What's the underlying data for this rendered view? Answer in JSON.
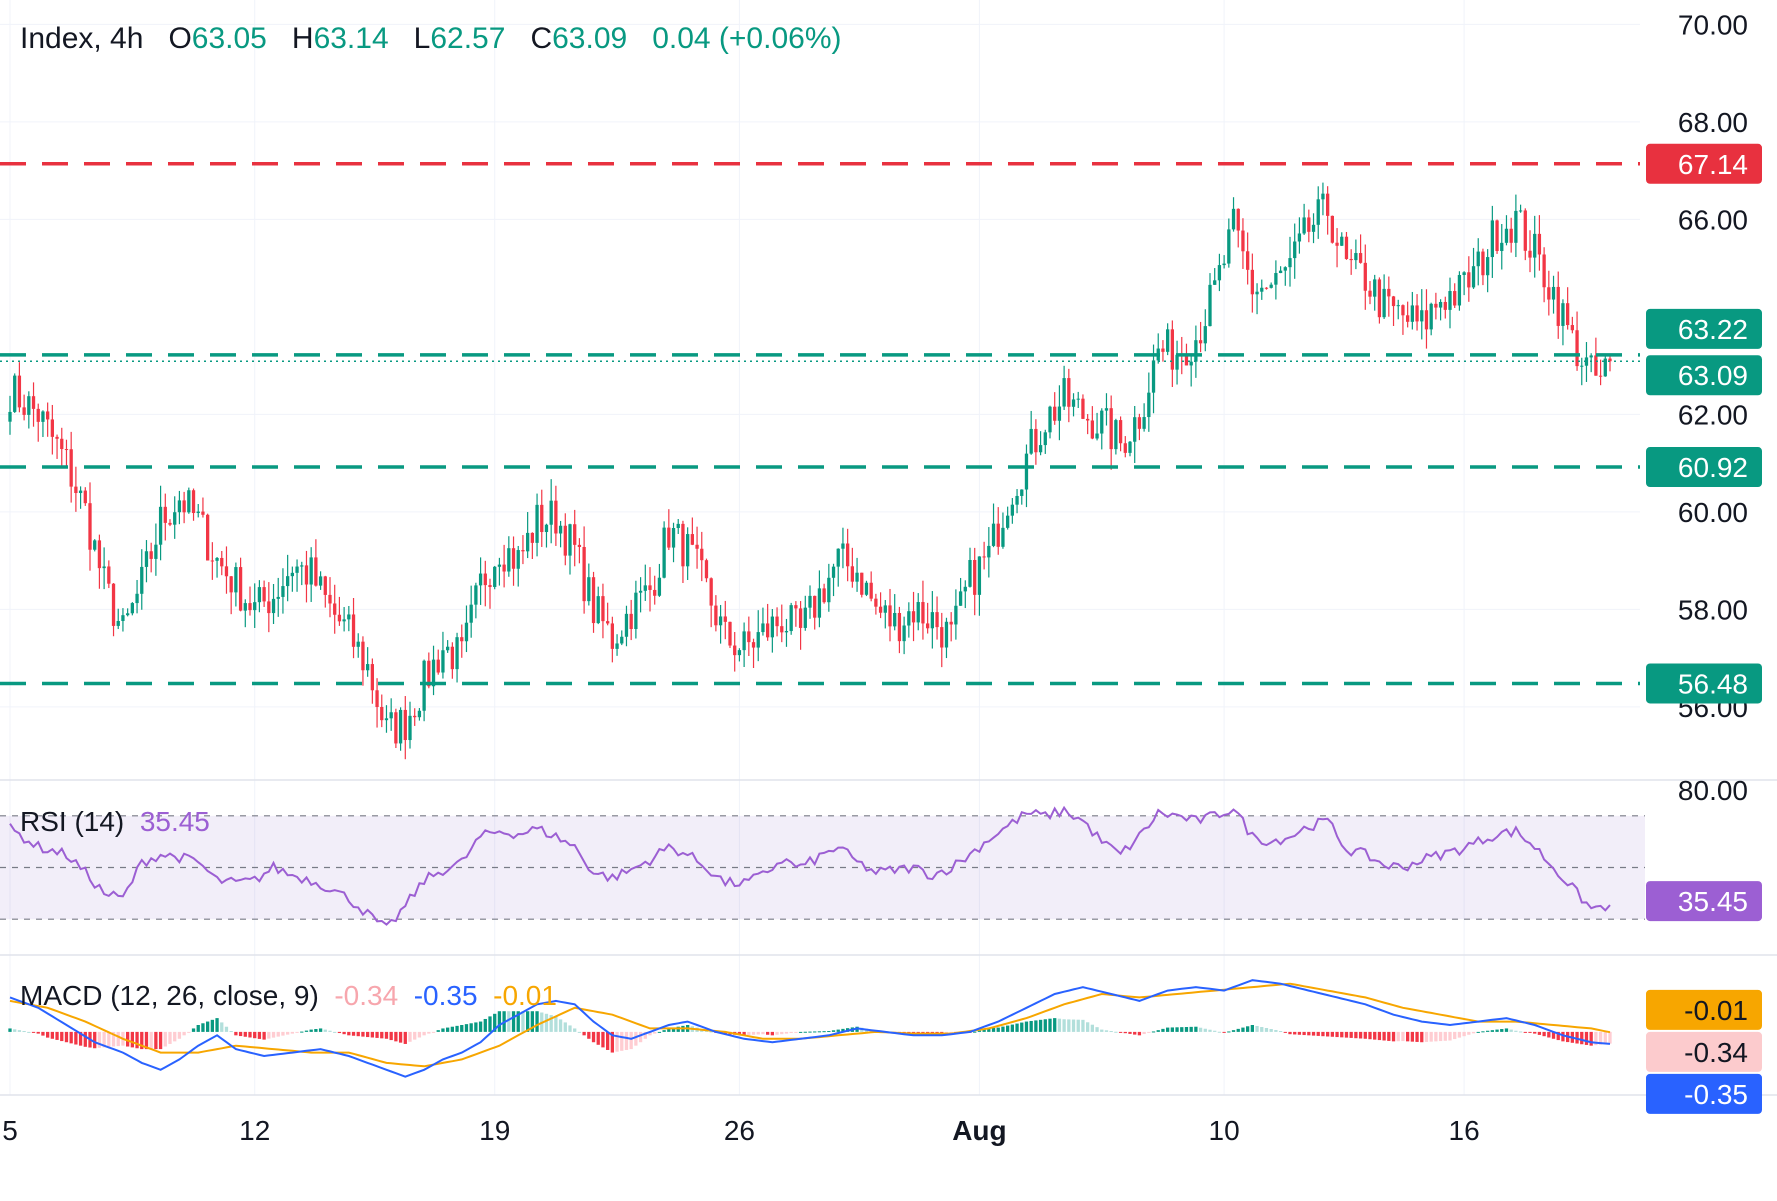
{
  "header": {
    "symbol": "Index, 4h",
    "o_label": "O",
    "o_value": "63.05",
    "h_label": "H",
    "h_value": "63.14",
    "l_label": "L",
    "l_value": "62.57",
    "c_label": "C",
    "c_value": "63.09",
    "change": "0.04 (+0.06%)"
  },
  "rsi_header": {
    "label": "RSI (14)",
    "value": "35.45"
  },
  "macd_header": {
    "label": "MACD (12, 26, close, 9)",
    "hist": "-0.34",
    "macd": "-0.35",
    "signal": "-0.01"
  },
  "colors": {
    "up": "#089981",
    "down": "#f23645",
    "resistance": "#e8313f",
    "rsi": "#9c5fd3",
    "macd": "#2962ff",
    "signal": "#f7a600",
    "grid": "#f0f3fa"
  },
  "chart_data": [
    {
      "type": "candlestick",
      "timeframe": "4h",
      "ylim": [
        54.5,
        70.5
      ],
      "y_ticks": [
        "70.00",
        "68.00",
        "66.00",
        "62.00",
        "60.00",
        "58.00",
        "56.00"
      ],
      "x_ticks": [
        "5",
        "12",
        "19",
        "26",
        "Aug",
        "10",
        "16"
      ],
      "levels": [
        {
          "value": 67.14,
          "label": "67.14",
          "style": "resistance"
        },
        {
          "value": 63.22,
          "label": "63.22",
          "style": "support"
        },
        {
          "value": 60.92,
          "label": "60.92",
          "style": "support"
        },
        {
          "value": 56.48,
          "label": "56.48",
          "style": "support"
        }
      ],
      "last_price": {
        "value": 63.09,
        "label": "63.09"
      },
      "waypoints": [
        [
          0,
          62.5
        ],
        [
          6,
          62.0
        ],
        [
          12,
          61.0
        ],
        [
          16,
          60.0
        ],
        [
          20,
          58.5
        ],
        [
          24,
          57.5
        ],
        [
          28,
          58.5
        ],
        [
          32,
          59.8
        ],
        [
          36,
          60.3
        ],
        [
          40,
          59.8
        ],
        [
          44,
          59.0
        ],
        [
          48,
          58.5
        ],
        [
          52,
          58.0
        ],
        [
          56,
          58.3
        ],
        [
          60,
          58.9
        ],
        [
          64,
          58.7
        ],
        [
          68,
          58.0
        ],
        [
          72,
          57.5
        ],
        [
          76,
          56.8
        ],
        [
          80,
          55.5
        ],
        [
          84,
          55.7
        ],
        [
          88,
          56.5
        ],
        [
          92,
          57.2
        ],
        [
          96,
          57.0
        ],
        [
          100,
          58.5
        ],
        [
          104,
          59.3
        ],
        [
          108,
          59.0
        ],
        [
          112,
          59.8
        ],
        [
          116,
          59.9
        ],
        [
          120,
          59.2
        ],
        [
          124,
          58.0
        ],
        [
          128,
          57.4
        ],
        [
          132,
          58.0
        ],
        [
          136,
          58.4
        ],
        [
          140,
          59.6
        ],
        [
          144,
          59.2
        ],
        [
          148,
          58.4
        ],
        [
          152,
          57.4
        ],
        [
          156,
          57.2
        ],
        [
          160,
          57.5
        ],
        [
          164,
          57.8
        ],
        [
          168,
          57.5
        ],
        [
          172,
          58.3
        ],
        [
          176,
          59.0
        ],
        [
          180,
          58.8
        ],
        [
          184,
          58.0
        ],
        [
          188,
          57.7
        ],
        [
          192,
          58.0
        ],
        [
          196,
          57.8
        ],
        [
          200,
          57.4
        ],
        [
          204,
          58.6
        ],
        [
          208,
          59.1
        ],
        [
          212,
          60.3
        ],
        [
          216,
          61.1
        ],
        [
          220,
          61.9
        ],
        [
          224,
          62.3
        ],
        [
          228,
          62.0
        ],
        [
          232,
          61.8
        ],
        [
          236,
          61.4
        ],
        [
          240,
          62.0
        ],
        [
          244,
          63.3
        ],
        [
          248,
          63.3
        ],
        [
          252,
          63.6
        ],
        [
          256,
          64.5
        ],
        [
          260,
          65.8
        ],
        [
          264,
          64.6
        ],
        [
          268,
          64.6
        ],
        [
          272,
          65.0
        ],
        [
          276,
          65.8
        ],
        [
          280,
          66.2
        ],
        [
          284,
          65.0
        ],
        [
          288,
          64.8
        ],
        [
          292,
          64.2
        ],
        [
          296,
          64.0
        ],
        [
          300,
          63.8
        ],
        [
          304,
          64.4
        ],
        [
          308,
          64.5
        ],
        [
          312,
          65.0
        ],
        [
          316,
          65.8
        ],
        [
          320,
          66.0
        ],
        [
          324,
          65.3
        ],
        [
          328,
          64.5
        ],
        [
          332,
          63.5
        ],
        [
          336,
          62.8
        ],
        [
          338,
          62.7
        ],
        [
          340,
          63.09
        ]
      ]
    },
    {
      "type": "line",
      "name": "RSI (14)",
      "ylim": [
        20,
        80
      ],
      "y_ticks": [
        "80.00"
      ],
      "bands": [
        70,
        50,
        30
      ],
      "last": {
        "value": 35.45,
        "label": "35.45"
      },
      "waypoints": [
        [
          0,
          65
        ],
        [
          6,
          58
        ],
        [
          12,
          55
        ],
        [
          16,
          48
        ],
        [
          20,
          40
        ],
        [
          24,
          38
        ],
        [
          28,
          52
        ],
        [
          32,
          55
        ],
        [
          36,
          54
        ],
        [
          40,
          52
        ],
        [
          44,
          45
        ],
        [
          48,
          44
        ],
        [
          52,
          45
        ],
        [
          56,
          50
        ],
        [
          60,
          47
        ],
        [
          64,
          45
        ],
        [
          68,
          42
        ],
        [
          72,
          38
        ],
        [
          76,
          32
        ],
        [
          80,
          26
        ],
        [
          84,
          35
        ],
        [
          88,
          45
        ],
        [
          92,
          49
        ],
        [
          96,
          52
        ],
        [
          100,
          62
        ],
        [
          104,
          64
        ],
        [
          108,
          63
        ],
        [
          112,
          65
        ],
        [
          116,
          62
        ],
        [
          120,
          58
        ],
        [
          124,
          48
        ],
        [
          128,
          46
        ],
        [
          132,
          49
        ],
        [
          136,
          53
        ],
        [
          140,
          58
        ],
        [
          144,
          55
        ],
        [
          148,
          50
        ],
        [
          152,
          44
        ],
        [
          156,
          44
        ],
        [
          160,
          47
        ],
        [
          164,
          53
        ],
        [
          168,
          50
        ],
        [
          172,
          54
        ],
        [
          176,
          58
        ],
        [
          180,
          52
        ],
        [
          184,
          48
        ],
        [
          188,
          49
        ],
        [
          192,
          50
        ],
        [
          196,
          47
        ],
        [
          200,
          50
        ],
        [
          204,
          55
        ],
        [
          208,
          61
        ],
        [
          212,
          66
        ],
        [
          216,
          71
        ],
        [
          220,
          70
        ],
        [
          224,
          72
        ],
        [
          228,
          68
        ],
        [
          232,
          60
        ],
        [
          236,
          55
        ],
        [
          240,
          62
        ],
        [
          244,
          71
        ],
        [
          248,
          70
        ],
        [
          252,
          68
        ],
        [
          256,
          70
        ],
        [
          260,
          73
        ],
        [
          264,
          62
        ],
        [
          268,
          60
        ],
        [
          272,
          62
        ],
        [
          276,
          66
        ],
        [
          280,
          68
        ],
        [
          284,
          57
        ],
        [
          288,
          55
        ],
        [
          292,
          51
        ],
        [
          296,
          50
        ],
        [
          300,
          53
        ],
        [
          304,
          55
        ],
        [
          308,
          57
        ],
        [
          312,
          60
        ],
        [
          316,
          63
        ],
        [
          320,
          64
        ],
        [
          324,
          58
        ],
        [
          328,
          50
        ],
        [
          332,
          42
        ],
        [
          336,
          34
        ],
        [
          340,
          35.45
        ]
      ]
    },
    {
      "type": "macd",
      "name": "MACD (12, 26, close, 9)",
      "ylim": [
        -1.6,
        2.0
      ],
      "series": [
        {
          "name": "MACD",
          "last": -0.35
        },
        {
          "name": "Signal",
          "last": -0.01
        },
        {
          "name": "Histogram",
          "last": -0.34
        }
      ],
      "right_labels": [
        "-0.01",
        "-0.34",
        "-0.35"
      ],
      "macd_waypoints": [
        [
          0,
          1.0
        ],
        [
          6,
          0.7
        ],
        [
          12,
          0.2
        ],
        [
          18,
          -0.3
        ],
        [
          24,
          -0.6
        ],
        [
          28,
          -0.9
        ],
        [
          32,
          -1.1
        ],
        [
          36,
          -0.8
        ],
        [
          40,
          -0.4
        ],
        [
          44,
          -0.1
        ],
        [
          48,
          -0.5
        ],
        [
          54,
          -0.7
        ],
        [
          60,
          -0.6
        ],
        [
          66,
          -0.5
        ],
        [
          72,
          -0.7
        ],
        [
          78,
          -1.0
        ],
        [
          84,
          -1.3
        ],
        [
          88,
          -1.1
        ],
        [
          92,
          -0.8
        ],
        [
          96,
          -0.6
        ],
        [
          100,
          -0.3
        ],
        [
          104,
          0.2
        ],
        [
          108,
          0.5
        ],
        [
          112,
          0.8
        ],
        [
          116,
          0.9
        ],
        [
          120,
          0.8
        ],
        [
          124,
          0.3
        ],
        [
          128,
          -0.1
        ],
        [
          132,
          -0.2
        ],
        [
          136,
          0.0
        ],
        [
          140,
          0.2
        ],
        [
          144,
          0.3
        ],
        [
          150,
          0.0
        ],
        [
          156,
          -0.2
        ],
        [
          162,
          -0.3
        ],
        [
          168,
          -0.2
        ],
        [
          174,
          -0.1
        ],
        [
          180,
          0.1
        ],
        [
          186,
          0.0
        ],
        [
          192,
          -0.1
        ],
        [
          198,
          -0.1
        ],
        [
          204,
          0.0
        ],
        [
          210,
          0.3
        ],
        [
          216,
          0.7
        ],
        [
          222,
          1.1
        ],
        [
          228,
          1.3
        ],
        [
          234,
          1.1
        ],
        [
          240,
          0.9
        ],
        [
          246,
          1.2
        ],
        [
          252,
          1.3
        ],
        [
          258,
          1.2
        ],
        [
          264,
          1.5
        ],
        [
          270,
          1.4
        ],
        [
          276,
          1.2
        ],
        [
          282,
          1.0
        ],
        [
          288,
          0.8
        ],
        [
          294,
          0.5
        ],
        [
          300,
          0.3
        ],
        [
          306,
          0.2
        ],
        [
          312,
          0.3
        ],
        [
          318,
          0.4
        ],
        [
          324,
          0.2
        ],
        [
          330,
          -0.1
        ],
        [
          336,
          -0.3
        ],
        [
          340,
          -0.35
        ]
      ],
      "signal_waypoints": [
        [
          0,
          0.9
        ],
        [
          8,
          0.7
        ],
        [
          16,
          0.3
        ],
        [
          24,
          -0.2
        ],
        [
          32,
          -0.6
        ],
        [
          40,
          -0.6
        ],
        [
          48,
          -0.4
        ],
        [
          56,
          -0.5
        ],
        [
          64,
          -0.6
        ],
        [
          72,
          -0.6
        ],
        [
          80,
          -0.9
        ],
        [
          88,
          -1.0
        ],
        [
          96,
          -0.8
        ],
        [
          104,
          -0.4
        ],
        [
          112,
          0.2
        ],
        [
          120,
          0.7
        ],
        [
          128,
          0.5
        ],
        [
          136,
          0.1
        ],
        [
          144,
          0.1
        ],
        [
          152,
          0.0
        ],
        [
          160,
          -0.2
        ],
        [
          168,
          -0.2
        ],
        [
          176,
          -0.1
        ],
        [
          184,
          0.0
        ],
        [
          192,
          -0.05
        ],
        [
          200,
          -0.05
        ],
        [
          208,
          0.1
        ],
        [
          216,
          0.4
        ],
        [
          224,
          0.8
        ],
        [
          232,
          1.1
        ],
        [
          240,
          1.0
        ],
        [
          248,
          1.1
        ],
        [
          256,
          1.2
        ],
        [
          264,
          1.3
        ],
        [
          272,
          1.4
        ],
        [
          280,
          1.2
        ],
        [
          288,
          1.0
        ],
        [
          296,
          0.7
        ],
        [
          304,
          0.5
        ],
        [
          312,
          0.3
        ],
        [
          320,
          0.3
        ],
        [
          328,
          0.2
        ],
        [
          336,
          0.1
        ],
        [
          340,
          -0.01
        ]
      ]
    }
  ]
}
